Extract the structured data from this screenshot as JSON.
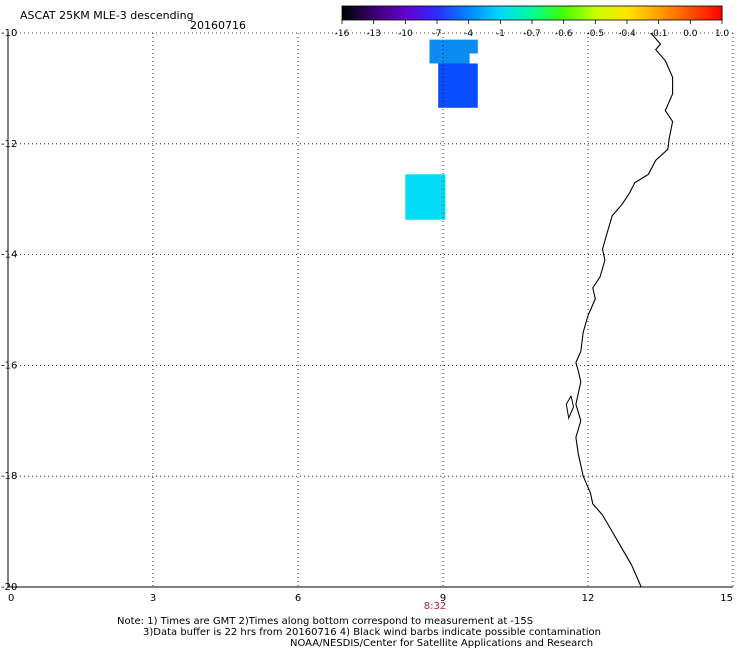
{
  "header": {
    "title": "ASCAT 25KM MLE-3 descending",
    "date": "20160716"
  },
  "colorbar": {
    "labels": [
      "-16",
      "-13",
      "-10",
      "-7",
      "-4",
      "-1",
      "-0.7",
      "-0.6",
      "-0.5",
      "-0.4",
      "-0.1",
      "0.0",
      "1.0"
    ],
    "colors": [
      "#000000",
      "#3a0070",
      "#6600cc",
      "#2c2cff",
      "#0088ff",
      "#00d8ff",
      "#00ff96",
      "#44ff00",
      "#c8ff00",
      "#ffe600",
      "#ffa000",
      "#ff5000",
      "#ff0000"
    ]
  },
  "chart_data": {
    "type": "heatmap",
    "xlim": [
      0,
      15
    ],
    "ylim": [
      -20,
      -10
    ],
    "x_ticks": [
      0,
      3,
      6,
      9,
      12,
      15
    ],
    "x_tick_labels": [
      "0",
      "3",
      "6",
      "9",
      "12",
      "15"
    ],
    "y_ticks": [
      -10,
      -12,
      -14,
      -16,
      -18,
      -20
    ],
    "y_tick_labels": [
      "-10",
      "-12",
      "-14",
      "-16",
      "-18",
      "-20"
    ],
    "grid": true,
    "cells": [
      {
        "x0": 8.72,
        "x1": 9.72,
        "y0": -10.12,
        "y1": -10.37,
        "color": "#0a8cf0"
      },
      {
        "x0": 8.72,
        "x1": 9.55,
        "y0": -10.37,
        "y1": -10.55,
        "color": "#0a8cf0"
      },
      {
        "x0": 8.9,
        "x1": 9.72,
        "y0": -10.55,
        "y1": -11.35,
        "color": "#0a4cff"
      },
      {
        "x0": 8.22,
        "x1": 9.05,
        "y0": -12.55,
        "y1": -13.37,
        "color": "#00dcf5"
      }
    ],
    "coastline": [
      [
        13.3,
        -10.0
      ],
      [
        13.5,
        -10.2
      ],
      [
        13.4,
        -10.3
      ],
      [
        13.6,
        -10.5
      ],
      [
        13.75,
        -10.8
      ],
      [
        13.75,
        -11.1
      ],
      [
        13.6,
        -11.4
      ],
      [
        13.75,
        -11.6
      ],
      [
        13.68,
        -11.9
      ],
      [
        13.65,
        -12.1
      ],
      [
        13.4,
        -12.3
      ],
      [
        13.25,
        -12.55
      ],
      [
        12.97,
        -12.7
      ],
      [
        12.85,
        -12.9
      ],
      [
        12.7,
        -13.1
      ],
      [
        12.5,
        -13.3
      ],
      [
        12.4,
        -13.6
      ],
      [
        12.3,
        -13.9
      ],
      [
        12.35,
        -14.1
      ],
      [
        12.25,
        -14.4
      ],
      [
        12.1,
        -14.6
      ],
      [
        12.15,
        -14.8
      ],
      [
        12.0,
        -15.1
      ],
      [
        11.9,
        -15.4
      ],
      [
        11.85,
        -15.75
      ],
      [
        11.75,
        -15.95
      ],
      [
        11.8,
        -16.1
      ],
      [
        11.85,
        -16.3
      ],
      [
        11.8,
        -16.5
      ],
      [
        11.75,
        -16.7
      ],
      [
        11.85,
        -17.0
      ],
      [
        11.75,
        -17.3
      ],
      [
        11.8,
        -17.6
      ],
      [
        11.85,
        -17.8
      ],
      [
        11.9,
        -18.0
      ],
      [
        12.05,
        -18.3
      ],
      [
        12.1,
        -18.5
      ],
      [
        12.3,
        -18.7
      ],
      [
        12.5,
        -19.0
      ],
      [
        12.7,
        -19.3
      ],
      [
        12.9,
        -19.6
      ],
      [
        13.05,
        -19.9
      ],
      [
        13.1,
        -20.0
      ]
    ],
    "time_labels": [
      {
        "x": 9.0,
        "text": "8:32"
      }
    ]
  },
  "footer": {
    "note_line1": "Note: 1) Times are GMT 2)Times along bottom correspond to measurement at -15S",
    "note_line2": "3)Data buffer is 22 hrs from 20160716 4) Black wind barbs indicate possible contamination",
    "note_line3": "NOAA/NESDIS/Center for Satellite Applications and Research"
  }
}
